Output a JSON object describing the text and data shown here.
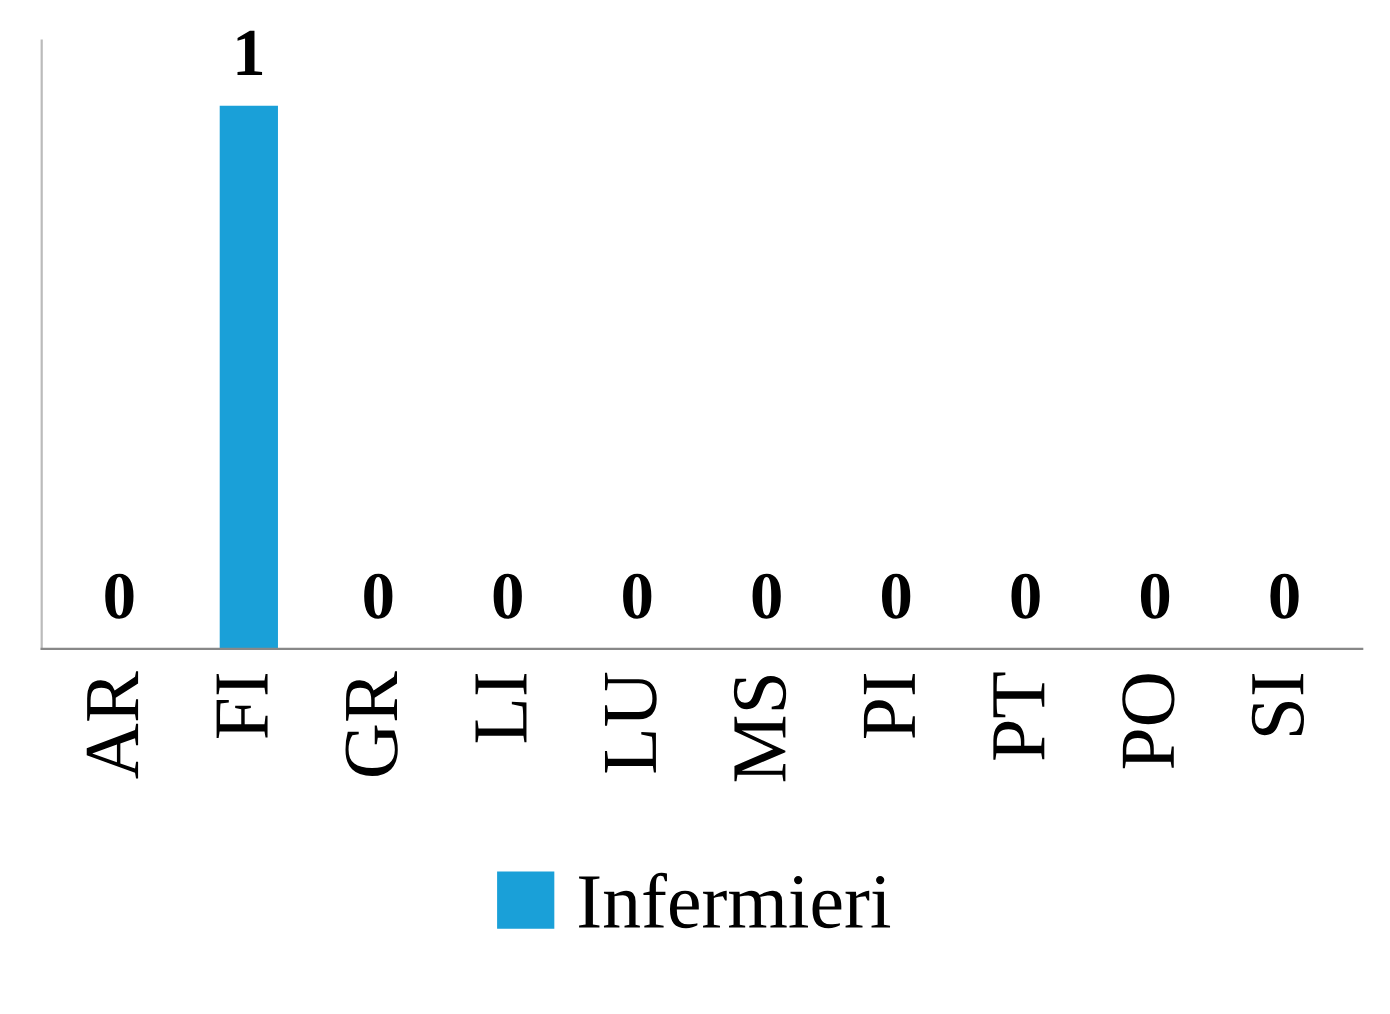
{
  "chart_data": {
    "type": "bar",
    "categories": [
      "AR",
      "FI",
      "GR",
      "LI",
      "LU",
      "MS",
      "PI",
      "PT",
      "PO",
      "SI"
    ],
    "series": [
      {
        "name": "Infermieri",
        "color": "#1aa0d8",
        "values": [
          0,
          1,
          0,
          0,
          0,
          0,
          0,
          0,
          0,
          0
        ]
      }
    ],
    "data_labels": true,
    "legend": "bottom",
    "grid": false
  }
}
